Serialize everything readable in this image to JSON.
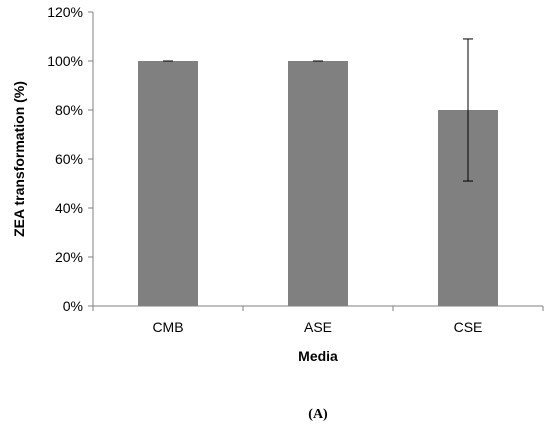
{
  "chart_data": {
    "type": "bar",
    "categories": [
      "CMB",
      "ASE",
      "CSE"
    ],
    "values": [
      100,
      100,
      80
    ],
    "error": [
      0,
      0,
      29
    ],
    "xlabel": "Media",
    "ylabel": "ZEA transformation (%)",
    "ylim": [
      0,
      120
    ],
    "yticks": [
      "0%",
      "20%",
      "40%",
      "60%",
      "80%",
      "100%",
      "120%"
    ],
    "grid": false,
    "legend": "none",
    "bar_color": "#808080",
    "panel_label": "(A)"
  }
}
